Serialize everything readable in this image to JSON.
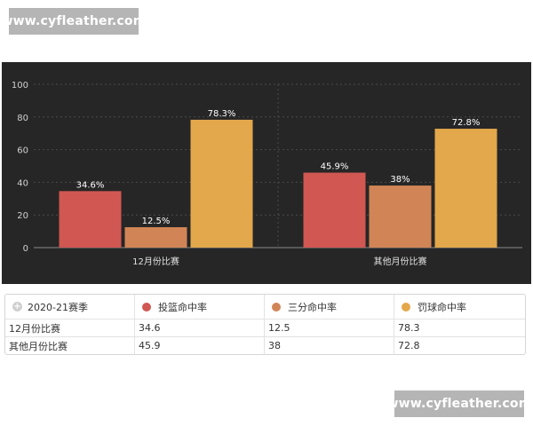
{
  "watermark": {
    "text": "www.cyfleather.com"
  },
  "chart_data": {
    "type": "bar",
    "categories": [
      "12月份比赛",
      "其他月份比赛"
    ],
    "series": [
      {
        "name": "投篮命中率",
        "values": [
          34.6,
          45.9
        ],
        "labels": [
          "34.6%",
          "45.9%"
        ],
        "color": "#d05752"
      },
      {
        "name": "三分命中率",
        "values": [
          12.5,
          38
        ],
        "labels": [
          "12.5%",
          "38%"
        ],
        "color": "#d18556"
      },
      {
        "name": "罚球命中率",
        "values": [
          78.3,
          72.8
        ],
        "labels": [
          "78.3%",
          "72.8%"
        ],
        "color": "#e3a84b"
      }
    ],
    "ylim": [
      0,
      100
    ],
    "yticks": [
      0,
      20,
      40,
      60,
      80,
      100
    ],
    "grid": true,
    "background": "#262626"
  },
  "table": {
    "corner_label": "2020-21赛季",
    "headers": [
      "投篮命中率",
      "三分命中率",
      "罚球命中率"
    ],
    "header_colors": [
      "#d05752",
      "#d18556",
      "#e3a84b"
    ],
    "rows": [
      {
        "label": "12月份比赛",
        "cells": [
          "34.6",
          "12.5",
          "78.3"
        ]
      },
      {
        "label": "其他月份比赛",
        "cells": [
          "45.9",
          "38",
          "72.8"
        ]
      }
    ]
  }
}
